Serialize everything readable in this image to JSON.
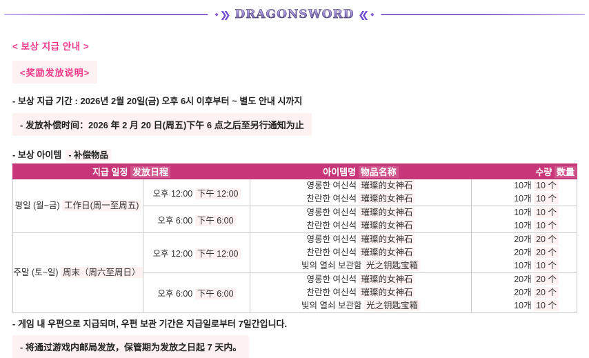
{
  "logo": {
    "text": "DRAGONSWORD"
  },
  "title": {
    "ko": "< 보상 지급 안내 >",
    "zh": "<奖励发放说明>"
  },
  "period": {
    "ko": "- 보상 지급 기간 : 2026년 2월 20일(금) 오후 6시 이후부터 ~ 별도 안내 시까지",
    "zh": "- 发放补偿时间：2026 年 2 月 20 日(周五)下午 6 点之后至另行通知为止"
  },
  "items_label": {
    "ko": "- 보상 아이템",
    "zh": "- 补偿物品"
  },
  "table": {
    "headers": {
      "schedule": {
        "ko": "지급 일정",
        "zh": "发放日程"
      },
      "item": {
        "ko": "아이템명",
        "zh": "物品名称"
      },
      "qty": {
        "ko": "수량",
        "zh": "数量"
      }
    },
    "groups": [
      {
        "day_ko": "평일 (월~금)",
        "day_zh": "工作日(周一至周五)",
        "slots": [
          {
            "time_ko": "오후 12:00",
            "time_zh": "下午 12:00",
            "rows": [
              {
                "item_ko": "영롱한 여신석",
                "item_zh": "璀璨的女神石",
                "qty_ko": "10개",
                "qty_zh": "10 个"
              },
              {
                "item_ko": "찬란한 여신석",
                "item_zh": "璀璨的女神石",
                "qty_ko": "10개",
                "qty_zh": "10 个"
              }
            ]
          },
          {
            "time_ko": "오후 6:00",
            "time_zh": "下午 6:00",
            "rows": [
              {
                "item_ko": "영롱한 여신석",
                "item_zh": "璀璨的女神石",
                "qty_ko": "10개",
                "qty_zh": "10 个"
              },
              {
                "item_ko": "찬란한 여신석",
                "item_zh": "璀璨的女神石",
                "qty_ko": "10개",
                "qty_zh": "10 个"
              }
            ]
          }
        ]
      },
      {
        "day_ko": "주말 (토~일)",
        "day_zh": "周末（周六至周日）",
        "slots": [
          {
            "time_ko": "오후 12:00",
            "time_zh": "下午 12:00",
            "rows": [
              {
                "item_ko": "영롱한 여신석",
                "item_zh": "璀璨的女神石",
                "qty_ko": "20개",
                "qty_zh": "20 个"
              },
              {
                "item_ko": "찬란한 여신석",
                "item_zh": "璀璨的女神石",
                "qty_ko": "20개",
                "qty_zh": "20 个"
              },
              {
                "item_ko": "빛의 열쇠 보관함",
                "item_zh": "光之钥匙宝箱",
                "qty_ko": "10개",
                "qty_zh": "10 个"
              }
            ]
          },
          {
            "time_ko": "오후 6:00",
            "time_zh": "下午 6:00",
            "rows": [
              {
                "item_ko": "영롱한 여신석",
                "item_zh": "璀璨的女神石",
                "qty_ko": "20개",
                "qty_zh": "20 个"
              },
              {
                "item_ko": "찬란한 여신석",
                "item_zh": "璀璨的女神石",
                "qty_ko": "20개",
                "qty_zh": "20 个"
              },
              {
                "item_ko": "빛의 열쇠 보관함",
                "item_zh": "光之钥匙宝箱",
                "qty_ko": "10개",
                "qty_zh": "10 个"
              }
            ]
          }
        ]
      }
    ]
  },
  "footer": {
    "ko": "- 게임 내 우편으로 지급되며, 우편 보관 기간은 지급일로부터 7일간입니다.",
    "zh": "- 将通过游戏内邮局发放，保管期为发放之日起 7 天内。"
  },
  "colors": {
    "accent_pink": "#f1398b",
    "table_header_bg": "#c63678",
    "highlight_bg": "#fdf1f1",
    "divider_purple": "#8a63d2",
    "text_dark": "#222222",
    "border_gray": "#c9c9c9"
  }
}
